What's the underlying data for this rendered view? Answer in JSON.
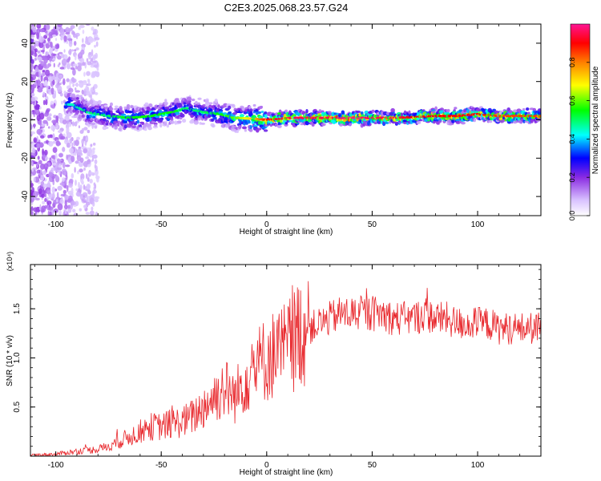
{
  "figure": {
    "title": "C2E3.2025.068.23.57.G24"
  },
  "chart_data": [
    {
      "type": "heatmap",
      "xlabel": "Height of straight line (km)",
      "ylabel": "Frequency (Hz)",
      "xlim": [
        -112,
        130
      ],
      "ylim": [
        -50,
        50
      ],
      "x_ticks": [
        -100,
        -50,
        0,
        50,
        100
      ],
      "y_ticks": [
        -40,
        -20,
        0,
        20,
        40
      ],
      "colorbar": {
        "label": "Normalized spectral amplitude",
        "range": [
          0,
          1
        ],
        "ticks": [
          "0.0",
          "0.2",
          "0.4",
          "0.6",
          "0.8"
        ],
        "colors": [
          "#ffffff",
          "#d9c2ff",
          "#8a2be2",
          "#0000ff",
          "#00ffff",
          "#00ff00",
          "#ffff00",
          "#ff7f00",
          "#ff0000",
          "#ff1493"
        ]
      },
      "ridge": {
        "x": [
          -92,
          -85,
          -75,
          -65,
          -55,
          -45,
          -38,
          -30,
          -22,
          -15,
          -5,
          0,
          10,
          20,
          30,
          40,
          50,
          60,
          70,
          80,
          90,
          100,
          110,
          120,
          130
        ],
        "frequency": [
          8,
          4,
          2,
          1,
          2,
          4,
          6,
          4,
          3,
          1,
          0.5,
          0,
          1,
          1,
          1,
          1,
          1,
          1,
          1.5,
          2,
          2,
          3,
          2,
          2,
          2
        ],
        "amplitude": [
          0.4,
          0.45,
          0.45,
          0.5,
          0.5,
          0.5,
          0.45,
          0.45,
          0.5,
          0.55,
          0.7,
          0.85,
          0.9,
          0.9,
          0.9,
          0.95,
          0.9,
          0.9,
          0.85,
          0.85,
          0.85,
          0.85,
          0.8,
          0.8,
          0.8
        ]
      },
      "noise_region_x": [
        -112,
        -80
      ]
    },
    {
      "type": "line",
      "xlabel": "Height of straight line (km)",
      "ylabel": "SNR (10 * v/v)",
      "y_multiplier": "(x10⁴)",
      "xlim": [
        -112,
        130
      ],
      "ylim": [
        0,
        1.95
      ],
      "x_ticks": [
        -100,
        -50,
        0,
        50,
        100
      ],
      "y_ticks": [
        "0.5",
        "1.0",
        "1.5"
      ],
      "color": "#e8262b",
      "series": [
        {
          "x": [
            -112,
            -100,
            -90,
            -80,
            -75,
            -70,
            -65,
            -60,
            -55,
            -50,
            -45,
            -40,
            -35,
            -30,
            -25,
            -20,
            -15,
            -10,
            -5,
            0,
            5,
            10,
            15,
            20,
            25,
            30,
            35,
            40,
            45,
            50,
            55,
            60,
            65,
            70,
            75,
            80,
            85,
            90,
            95,
            100,
            105,
            110,
            115,
            120,
            125,
            130
          ],
          "values": [
            0.01,
            0.02,
            0.05,
            0.07,
            0.1,
            0.15,
            0.2,
            0.25,
            0.3,
            0.3,
            0.33,
            0.35,
            0.4,
            0.5,
            0.6,
            0.7,
            0.6,
            0.8,
            0.9,
            1.0,
            1.05,
            1.1,
            1.25,
            1.3,
            1.35,
            1.4,
            1.45,
            1.45,
            1.45,
            1.45,
            1.45,
            1.4,
            1.4,
            1.4,
            1.45,
            1.4,
            1.4,
            1.35,
            1.35,
            1.35,
            1.35,
            1.3,
            1.3,
            1.3,
            1.3,
            1.3
          ]
        }
      ]
    }
  ]
}
